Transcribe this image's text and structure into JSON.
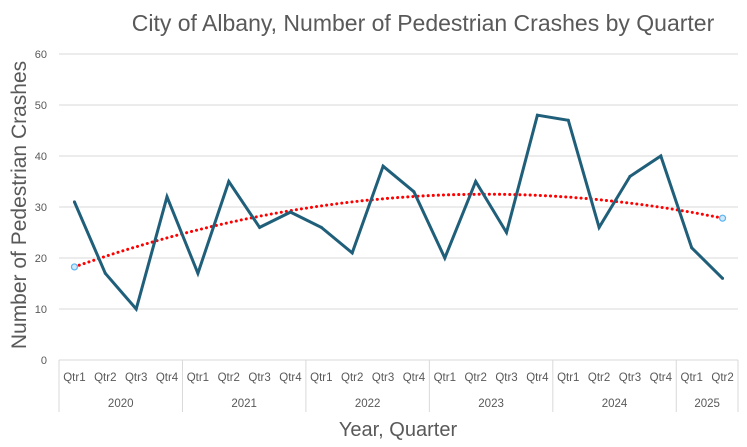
{
  "chart_data": {
    "type": "line",
    "title": "City of Albany, Number of Pedestrian Crashes by Quarter",
    "xlabel": "Year, Quarter",
    "ylabel": "Number of Pedestrian Crashes",
    "ylim": [
      0,
      60
    ],
    "yticks": [
      0,
      10,
      20,
      30,
      40,
      50,
      60
    ],
    "grid": true,
    "legend": "none",
    "groups": [
      {
        "year": "2020",
        "quarters": [
          "Qtr1",
          "Qtr2",
          "Qtr3",
          "Qtr4"
        ]
      },
      {
        "year": "2021",
        "quarters": [
          "Qtr1",
          "Qtr2",
          "Qtr3",
          "Qtr4"
        ]
      },
      {
        "year": "2022",
        "quarters": [
          "Qtr1",
          "Qtr2",
          "Qtr3",
          "Qtr4"
        ]
      },
      {
        "year": "2023",
        "quarters": [
          "Qtr1",
          "Qtr2",
          "Qtr3",
          "Qtr4"
        ]
      },
      {
        "year": "2024",
        "quarters": [
          "Qtr1",
          "Qtr2",
          "Qtr3",
          "Qtr4"
        ]
      },
      {
        "year": "2025",
        "quarters": [
          "Qtr1",
          "Qtr2"
        ]
      }
    ],
    "series": [
      {
        "name": "Pedestrian Crashes",
        "color": "#1f5f7a",
        "values": [
          31,
          17,
          10,
          32,
          17,
          35,
          26,
          29,
          26,
          21,
          38,
          33,
          20,
          35,
          25,
          48,
          47,
          26,
          36,
          40,
          22,
          16
        ]
      }
    ],
    "trendline": {
      "type": "polynomial (order 2)",
      "color": "#ff0000",
      "style": "dotted",
      "start_value": 18.3,
      "end_value": 27.8,
      "endpoint_marker_color": "#5bb4f0"
    }
  }
}
